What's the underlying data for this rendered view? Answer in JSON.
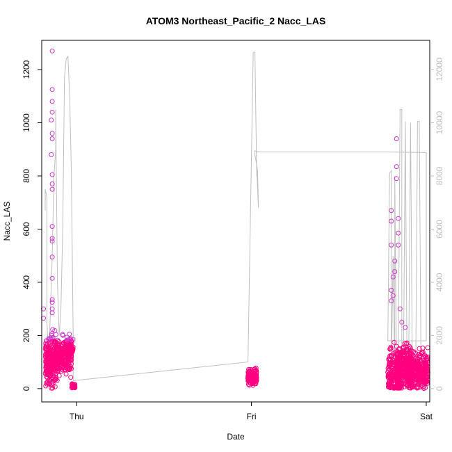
{
  "chart_data": {
    "type": "scatter",
    "title": "ATOM3 Northeast_Pacific_2 Nacc_LAS",
    "xlabel": "Date",
    "ylabel": "Nacc_LAS",
    "x_tick_labels": [
      "Thu",
      "Fri",
      "Sat"
    ],
    "x_ticks": [
      0,
      1,
      2
    ],
    "xlim": [
      -0.2,
      2.02
    ],
    "y_left": {
      "lim": [
        -50,
        1310
      ],
      "ticks": [
        0,
        200,
        400,
        600,
        800,
        1000,
        1200
      ],
      "labels": [
        "0",
        "200",
        "400",
        "600",
        "800",
        "1000",
        "1200"
      ]
    },
    "y_right": {
      "lim": [
        -500,
        13100
      ],
      "ticks": [
        0,
        2000,
        4000,
        6000,
        8000,
        10000,
        12000
      ],
      "labels": [
        "0",
        "2000",
        "4000",
        "6000",
        "8000",
        "10000",
        "12000"
      ],
      "color": "#bebebe"
    },
    "series": [
      {
        "kind": "points",
        "axis": "left",
        "color_low": "#ff0080",
        "color_high": "#cc33cc",
        "clusters": [
          {
            "x": [
              -0.18,
              -0.15
            ],
            "center": 100,
            "spread": 80,
            "count": 120
          },
          {
            "x": [
              -0.15,
              -0.1
            ],
            "center": 110,
            "spread": 90,
            "count": 200
          },
          {
            "x": [
              -0.1,
              -0.03
            ],
            "center": 120,
            "spread": 70,
            "count": 150
          },
          {
            "x": [
              -0.06,
              -0.02
            ],
            "center": 150,
            "spread": 40,
            "count": 60
          },
          {
            "x": [
              -0.03,
              -0.01
            ],
            "center": 10,
            "spread": 10,
            "count": 25
          },
          {
            "x": [
              0.98,
              1.03
            ],
            "center": 40,
            "spread": 30,
            "count": 160
          },
          {
            "x": [
              1.78,
              1.85
            ],
            "center": 60,
            "spread": 90,
            "count": 200
          },
          {
            "x": [
              1.83,
              1.92
            ],
            "center": 80,
            "spread": 80,
            "count": 300
          },
          {
            "x": [
              1.9,
              2.01
            ],
            "center": 70,
            "spread": 70,
            "count": 300
          }
        ],
        "outliers": [
          {
            "x": -0.14,
            "y": 1270
          },
          {
            "x": -0.14,
            "y": 1125
          },
          {
            "x": -0.14,
            "y": 1080
          },
          {
            "x": -0.14,
            "y": 1040
          },
          {
            "x": -0.145,
            "y": 1010
          },
          {
            "x": -0.14,
            "y": 960
          },
          {
            "x": -0.14,
            "y": 940
          },
          {
            "x": -0.145,
            "y": 880
          },
          {
            "x": -0.14,
            "y": 805
          },
          {
            "x": -0.14,
            "y": 770
          },
          {
            "x": -0.14,
            "y": 750
          },
          {
            "x": -0.14,
            "y": 610
          },
          {
            "x": -0.14,
            "y": 565
          },
          {
            "x": -0.14,
            "y": 555
          },
          {
            "x": -0.14,
            "y": 495
          },
          {
            "x": -0.14,
            "y": 415
          },
          {
            "x": -0.14,
            "y": 335
          },
          {
            "x": -0.14,
            "y": 325
          },
          {
            "x": -0.14,
            "y": 300
          },
          {
            "x": -0.14,
            "y": 285
          },
          {
            "x": -0.19,
            "y": 300
          },
          {
            "x": -0.19,
            "y": 265
          },
          {
            "x": 1.83,
            "y": 940
          },
          {
            "x": 1.83,
            "y": 835
          },
          {
            "x": 1.83,
            "y": 790
          },
          {
            "x": 1.84,
            "y": 640
          },
          {
            "x": 1.84,
            "y": 585
          },
          {
            "x": 1.84,
            "y": 540
          },
          {
            "x": 1.8,
            "y": 670
          },
          {
            "x": 1.8,
            "y": 630
          },
          {
            "x": 1.8,
            "y": 540
          },
          {
            "x": 1.82,
            "y": 480
          },
          {
            "x": 1.82,
            "y": 440
          },
          {
            "x": 1.81,
            "y": 420
          },
          {
            "x": 1.8,
            "y": 370
          },
          {
            "x": 1.81,
            "y": 350
          },
          {
            "x": 1.8,
            "y": 330
          },
          {
            "x": 1.85,
            "y": 300
          },
          {
            "x": 1.86,
            "y": 250
          },
          {
            "x": 1.88,
            "y": 230
          }
        ]
      },
      {
        "kind": "line",
        "axis": "right",
        "color": "#bebebe",
        "x": [
          -0.18,
          -0.18,
          -0.17,
          -0.17,
          -0.16,
          -0.15,
          -0.14,
          -0.13,
          -0.12,
          -0.12,
          -0.11,
          -0.1,
          -0.09,
          -0.08,
          -0.07,
          -0.06,
          -0.05,
          -0.04,
          -0.03,
          -0.02,
          -0.02,
          0.98,
          1.01,
          1.01,
          1.02,
          1.02,
          1.03,
          1.03,
          1.04,
          1.04,
          1.035,
          1.02,
          1.02,
          1.02,
          1.02,
          1.03,
          1.03,
          1.05,
          1.1,
          1.2,
          1.3,
          1.4,
          1.5,
          1.6,
          1.7,
          1.8,
          2.0,
          2.0,
          1.78,
          1.79,
          1.8,
          1.8,
          1.81,
          1.82,
          1.82,
          1.83,
          1.84,
          1.85,
          1.86,
          1.86,
          1.87,
          1.88,
          1.88,
          1.89,
          1.9,
          1.91,
          1.91,
          1.92,
          1.93,
          1.94,
          1.95,
          1.96,
          1.97,
          1.97,
          1.98,
          1.99,
          2.0,
          2.01,
          2.01
        ],
        "y": [
          6700,
          7500,
          7200,
          2500,
          1000,
          3000,
          5000,
          8000,
          9000,
          10500,
          4000,
          2000,
          3000,
          6000,
          11700,
          12400,
          12500,
          11000,
          8000,
          2000,
          300,
          1000,
          12650,
          12650,
          12650,
          12650,
          8000,
          8200,
          6800,
          6800,
          8200,
          8800,
          8800,
          8900,
          8950,
          8900,
          8920,
          8900,
          8900,
          8900,
          8900,
          8900,
          8900,
          8900,
          8900,
          8900,
          8880,
          1800,
          1800,
          8100,
          8200,
          400,
          5000,
          500,
          8000,
          800,
          1000,
          10500,
          10500,
          800,
          1000,
          10000,
          10050,
          1000,
          1200,
          10000,
          10000,
          1000,
          1100,
          1000,
          10050,
          10050,
          1000,
          900,
          800,
          1000,
          1200,
          700,
          600
        ]
      }
    ]
  }
}
